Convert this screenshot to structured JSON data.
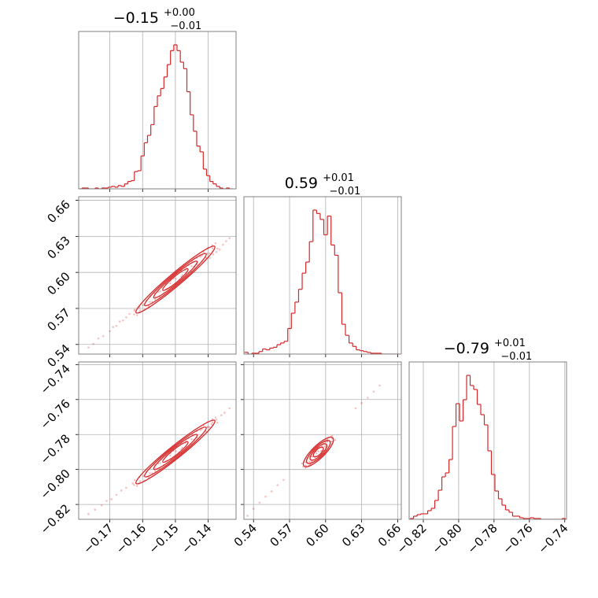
{
  "colors": {
    "series": "#d62728",
    "grid": "#b0b0b0",
    "frame": "#808080",
    "text": "#000000"
  },
  "chart_data": [
    {
      "type": "histogram",
      "panel": "hist-0",
      "title": {
        "main": "−0.15",
        "sup": "+0.00",
        "sub": "−0.01"
      },
      "xlim": [
        -0.1795,
        -0.1315
      ],
      "xticks": [
        -0.17,
        -0.16,
        -0.15,
        -0.14
      ],
      "grid": true,
      "bins_x": [
        -0.179,
        -0.178,
        -0.177,
        -0.176,
        -0.175,
        -0.174,
        -0.173,
        -0.172,
        -0.171,
        -0.17,
        -0.169,
        -0.168,
        -0.167,
        -0.166,
        -0.165,
        -0.164,
        -0.163,
        -0.162,
        -0.161,
        -0.16,
        -0.159,
        -0.158,
        -0.157,
        -0.156,
        -0.155,
        -0.154,
        -0.153,
        -0.152,
        -0.151,
        -0.15,
        -0.149,
        -0.148,
        -0.147,
        -0.146,
        -0.145,
        -0.144,
        -0.143,
        -0.142,
        -0.141,
        -0.14,
        -0.139,
        -0.138,
        -0.137,
        -0.136,
        -0.135,
        -0.134,
        -0.133
      ],
      "counts": [
        0,
        1,
        1,
        0,
        0,
        1,
        0,
        1,
        1,
        2,
        3,
        2,
        4,
        3,
        6,
        9,
        10,
        21,
        22,
        40,
        56,
        65,
        78,
        100,
        113,
        122,
        136,
        151,
        168,
        175,
        168,
        154,
        146,
        118,
        90,
        70,
        52,
        45,
        24,
        16,
        9,
        6,
        3,
        1,
        0,
        1,
        0
      ]
    },
    {
      "type": "histogram",
      "panel": "hist-1",
      "title": {
        "main": "0.59",
        "sup": "+0.01",
        "sub": "−0.01"
      },
      "xlim": [
        0.532,
        0.663
      ],
      "xticks": [
        0.54,
        0.57,
        0.6,
        0.63,
        0.66
      ],
      "grid": true,
      "bins_x": [
        0.534,
        0.537,
        0.54,
        0.543,
        0.546,
        0.549,
        0.552,
        0.555,
        0.558,
        0.561,
        0.564,
        0.567,
        0.57,
        0.573,
        0.576,
        0.579,
        0.582,
        0.585,
        0.588,
        0.591,
        0.594,
        0.597,
        0.6,
        0.603,
        0.606,
        0.609,
        0.612,
        0.615,
        0.618,
        0.621,
        0.624,
        0.627,
        0.63,
        0.633,
        0.636,
        0.639,
        0.642,
        0.645,
        0.648,
        0.651,
        0.654,
        0.657,
        0.66
      ],
      "counts": [
        2,
        0,
        1,
        1,
        3,
        6,
        5,
        7,
        8,
        11,
        13,
        15,
        30,
        48,
        61,
        76,
        95,
        108,
        132,
        169,
        165,
        158,
        140,
        162,
        128,
        116,
        72,
        35,
        22,
        13,
        9,
        5,
        4,
        3,
        2,
        1,
        1,
        1,
        0,
        0,
        0,
        0,
        0
      ]
    },
    {
      "type": "histogram",
      "panel": "hist-2",
      "title": {
        "main": "−0.79",
        "sup": "+0.01",
        "sub": "−0.01"
      },
      "xlim": [
        -0.828,
        -0.739
      ],
      "xticks": [
        -0.82,
        -0.8,
        -0.78,
        -0.76,
        -0.74
      ],
      "grid": true,
      "bins_x": [
        -0.8265,
        -0.8245,
        -0.8225,
        -0.8205,
        -0.8185,
        -0.8165,
        -0.8145,
        -0.8125,
        -0.8105,
        -0.8085,
        -0.8065,
        -0.8045,
        -0.8025,
        -0.8005,
        -0.7985,
        -0.7965,
        -0.7945,
        -0.7925,
        -0.7905,
        -0.7885,
        -0.7865,
        -0.7845,
        -0.7825,
        -0.7805,
        -0.7785,
        -0.7765,
        -0.7745,
        -0.7725,
        -0.7705,
        -0.7685,
        -0.7665,
        -0.7645,
        -0.7625,
        -0.7605,
        -0.7585,
        -0.7565,
        -0.7545,
        -0.7525,
        -0.7505,
        -0.7485,
        -0.7465,
        -0.7445,
        -0.7425,
        -0.7405
      ],
      "counts": [
        1,
        4,
        6,
        7,
        7,
        11,
        14,
        24,
        37,
        54,
        59,
        76,
        118,
        147,
        125,
        152,
        183,
        170,
        165,
        146,
        133,
        120,
        87,
        57,
        36,
        26,
        18,
        12,
        9,
        4,
        4,
        2,
        1,
        1,
        2,
        1,
        1,
        0,
        0,
        0,
        0,
        0,
        0,
        1
      ]
    },
    {
      "type": "scatter_contour",
      "panel": "pair-1-0",
      "xlim": [
        -0.1795,
        -0.1315
      ],
      "ylim": [
        0.532,
        0.663
      ],
      "xticks": [
        -0.17,
        -0.16,
        -0.15,
        -0.14
      ],
      "yticks": [
        0.54,
        0.57,
        0.6,
        0.63,
        0.66
      ],
      "grid": true,
      "relation": {
        "slope": 2.3,
        "intercept": 0.939,
        "spread": 0.0035
      },
      "contour_center": [
        -0.15,
        0.594
      ],
      "samples": [
        [
          -0.1765,
          0.5375
        ],
        [
          -0.175,
          0.5405
        ],
        [
          -0.1735,
          0.545
        ],
        [
          -0.172,
          0.547
        ],
        [
          -0.17,
          0.551
        ],
        [
          -0.169,
          0.5545
        ],
        [
          -0.168,
          0.5555
        ],
        [
          -0.167,
          0.559
        ],
        [
          -0.166,
          0.56
        ],
        [
          -0.165,
          0.5625
        ],
        [
          -0.164,
          0.5655
        ],
        [
          -0.1625,
          0.568
        ],
        [
          -0.161,
          0.5705
        ],
        [
          -0.1395,
          0.612
        ],
        [
          -0.1385,
          0.615
        ],
        [
          -0.1375,
          0.617
        ],
        [
          -0.1365,
          0.619
        ],
        [
          -0.1355,
          0.623
        ],
        [
          -0.1345,
          0.626
        ],
        [
          -0.1335,
          0.6285
        ]
      ]
    },
    {
      "type": "scatter_contour",
      "panel": "pair-2-0",
      "xlim": [
        -0.1795,
        -0.1315
      ],
      "ylim": [
        -0.8285,
        -0.7385
      ],
      "xticks": [
        -0.17,
        -0.16,
        -0.15,
        -0.14
      ],
      "yticks": [
        -0.82,
        -0.8,
        -0.78,
        -0.76,
        -0.74
      ],
      "grid": true,
      "relation": {
        "slope": 1.5,
        "intercept": -0.565,
        "spread": 0.0025
      },
      "contour_center": [
        -0.15,
        -0.79
      ],
      "samples": [
        [
          -0.1765,
          -0.8255
        ],
        [
          -0.1745,
          -0.823
        ],
        [
          -0.1725,
          -0.8205
        ],
        [
          -0.171,
          -0.818
        ],
        [
          -0.1695,
          -0.817
        ],
        [
          -0.168,
          -0.8145
        ],
        [
          -0.1665,
          -0.812
        ],
        [
          -0.165,
          -0.8105
        ],
        [
          -0.163,
          -0.808
        ],
        [
          -0.14,
          -0.7755
        ],
        [
          -0.139,
          -0.774
        ],
        [
          -0.1375,
          -0.7715
        ],
        [
          -0.136,
          -0.769
        ],
        [
          -0.135,
          -0.7675
        ],
        [
          -0.1335,
          -0.765
        ]
      ]
    },
    {
      "type": "scatter_contour",
      "panel": "pair-2-1",
      "xlim": [
        0.532,
        0.663
      ],
      "ylim": [
        -0.8285,
        -0.7385
      ],
      "xticks": [
        0.54,
        0.57,
        0.6,
        0.63,
        0.66
      ],
      "yticks": [
        -0.82,
        -0.8,
        -0.78,
        -0.76,
        -0.74
      ],
      "grid": true,
      "relation": {
        "slope": 0.67,
        "intercept": -1.1875,
        "spread": 0.0018
      },
      "contour_center": [
        0.594,
        -0.79
      ],
      "samples": [
        [
          0.535,
          -0.8265
        ],
        [
          0.54,
          -0.8225
        ],
        [
          0.545,
          -0.819
        ],
        [
          0.55,
          -0.8155
        ],
        [
          0.555,
          -0.8125
        ],
        [
          0.56,
          -0.809
        ],
        [
          0.565,
          -0.806
        ],
        [
          0.625,
          -0.765
        ],
        [
          0.63,
          -0.762
        ],
        [
          0.635,
          -0.759
        ],
        [
          0.64,
          -0.7555
        ],
        [
          0.645,
          -0.752
        ]
      ]
    }
  ]
}
